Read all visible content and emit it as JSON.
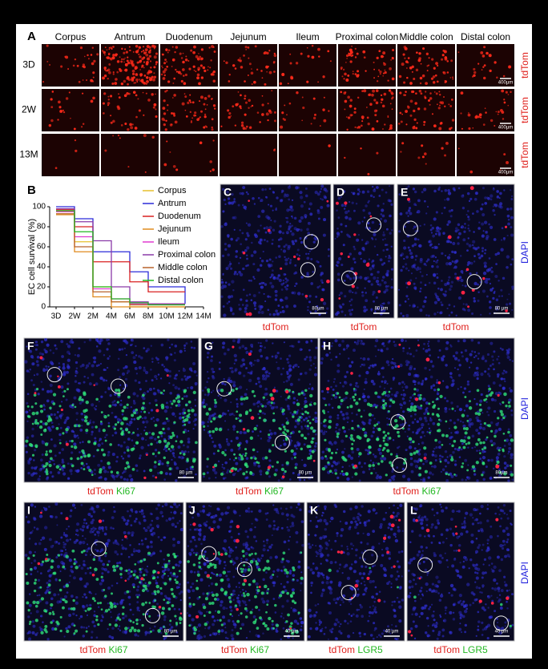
{
  "panel_a": {
    "label": "A",
    "columns": [
      "Corpus",
      "Antrum",
      "Duodenum",
      "Jejunum",
      "Ileum",
      "Proximal colon",
      "Middle colon",
      "Distal colon"
    ],
    "rows": [
      "3D",
      "2W",
      "13M"
    ],
    "stain": "tdTom",
    "scale_bar": "400µm"
  },
  "chart_data": {
    "type": "line",
    "step": true,
    "panel_label": "B",
    "y_label": "EC cell survival (%)",
    "categories": [
      "3D",
      "2W",
      "2M",
      "4M",
      "6M",
      "8M",
      "10M",
      "12M",
      "14M"
    ],
    "ylim": [
      0,
      100
    ],
    "yticks": [
      0,
      20,
      40,
      60,
      80,
      100
    ],
    "series": [
      {
        "name": "Corpus",
        "color": "#e6c02e",
        "values": [
          95,
          65,
          20,
          5,
          0,
          0,
          0,
          0,
          null
        ]
      },
      {
        "name": "Antrum",
        "color": "#2b2bd9",
        "values": [
          100,
          88,
          55,
          55,
          35,
          20,
          20,
          3,
          null
        ]
      },
      {
        "name": "Duodenum",
        "color": "#d92020",
        "values": [
          97,
          80,
          45,
          45,
          25,
          15,
          15,
          15,
          null
        ]
      },
      {
        "name": "Jejunum",
        "color": "#e08a1e",
        "values": [
          92,
          55,
          10,
          0,
          0,
          0,
          0,
          0,
          null
        ]
      },
      {
        "name": "Ileum",
        "color": "#e03ad0",
        "values": [
          95,
          70,
          18,
          8,
          3,
          3,
          3,
          3,
          null
        ]
      },
      {
        "name": "Proximal colon",
        "color": "#8a3aa8",
        "values": [
          98,
          85,
          66,
          20,
          5,
          3,
          3,
          3,
          null
        ]
      },
      {
        "name": "Middle colon",
        "color": "#b8622a",
        "values": [
          93,
          60,
          15,
          5,
          2,
          2,
          2,
          2,
          null
        ]
      },
      {
        "name": "Distal colon",
        "color": "#22b822",
        "values": [
          96,
          75,
          20,
          8,
          4,
          2,
          2,
          2,
          null
        ]
      }
    ]
  },
  "dapi": "DAPI",
  "panels": [
    {
      "label": "C",
      "scale_bar": "80µm",
      "caption": [
        {
          "text": "tdTom",
          "color": "#e0201c"
        }
      ]
    },
    {
      "label": "D",
      "scale_bar": "80 µm",
      "caption": [
        {
          "text": "tdTom",
          "color": "#e0201c"
        }
      ]
    },
    {
      "label": "E",
      "scale_bar": "80 µm",
      "caption": [
        {
          "text": "tdTom",
          "color": "#e0201c"
        }
      ]
    },
    {
      "label": "F",
      "scale_bar": "80 µm",
      "caption": [
        {
          "text": "tdTom",
          "color": "#e0201c"
        },
        {
          "text": "Ki67",
          "color": "#22b822"
        }
      ]
    },
    {
      "label": "G",
      "scale_bar": "80 µm",
      "caption": [
        {
          "text": "tdTom",
          "color": "#e0201c"
        },
        {
          "text": "Ki67",
          "color": "#22b822"
        }
      ]
    },
    {
      "label": "H",
      "scale_bar": "80µm",
      "caption": [
        {
          "text": "tdTom",
          "color": "#e0201c"
        },
        {
          "text": "Ki67",
          "color": "#22b822"
        }
      ]
    },
    {
      "label": "I",
      "scale_bar": "80 µm",
      "caption": [
        {
          "text": "tdTom",
          "color": "#e0201c"
        },
        {
          "text": "Ki67",
          "color": "#22b822"
        }
      ]
    },
    {
      "label": "J",
      "scale_bar": "40 µm",
      "caption": [
        {
          "text": "tdTom",
          "color": "#e0201c"
        },
        {
          "text": "Ki67",
          "color": "#22b822"
        }
      ]
    },
    {
      "label": "K",
      "scale_bar": "40 µm",
      "caption": [
        {
          "text": "tdTom",
          "color": "#e0201c"
        },
        {
          "text": "LGR5",
          "color": "#22b822"
        }
      ]
    },
    {
      "label": "L",
      "scale_bar": "40 µm",
      "caption": [
        {
          "text": "tdTom",
          "color": "#e0201c"
        },
        {
          "text": "LGR5",
          "color": "#22b822"
        }
      ]
    }
  ]
}
